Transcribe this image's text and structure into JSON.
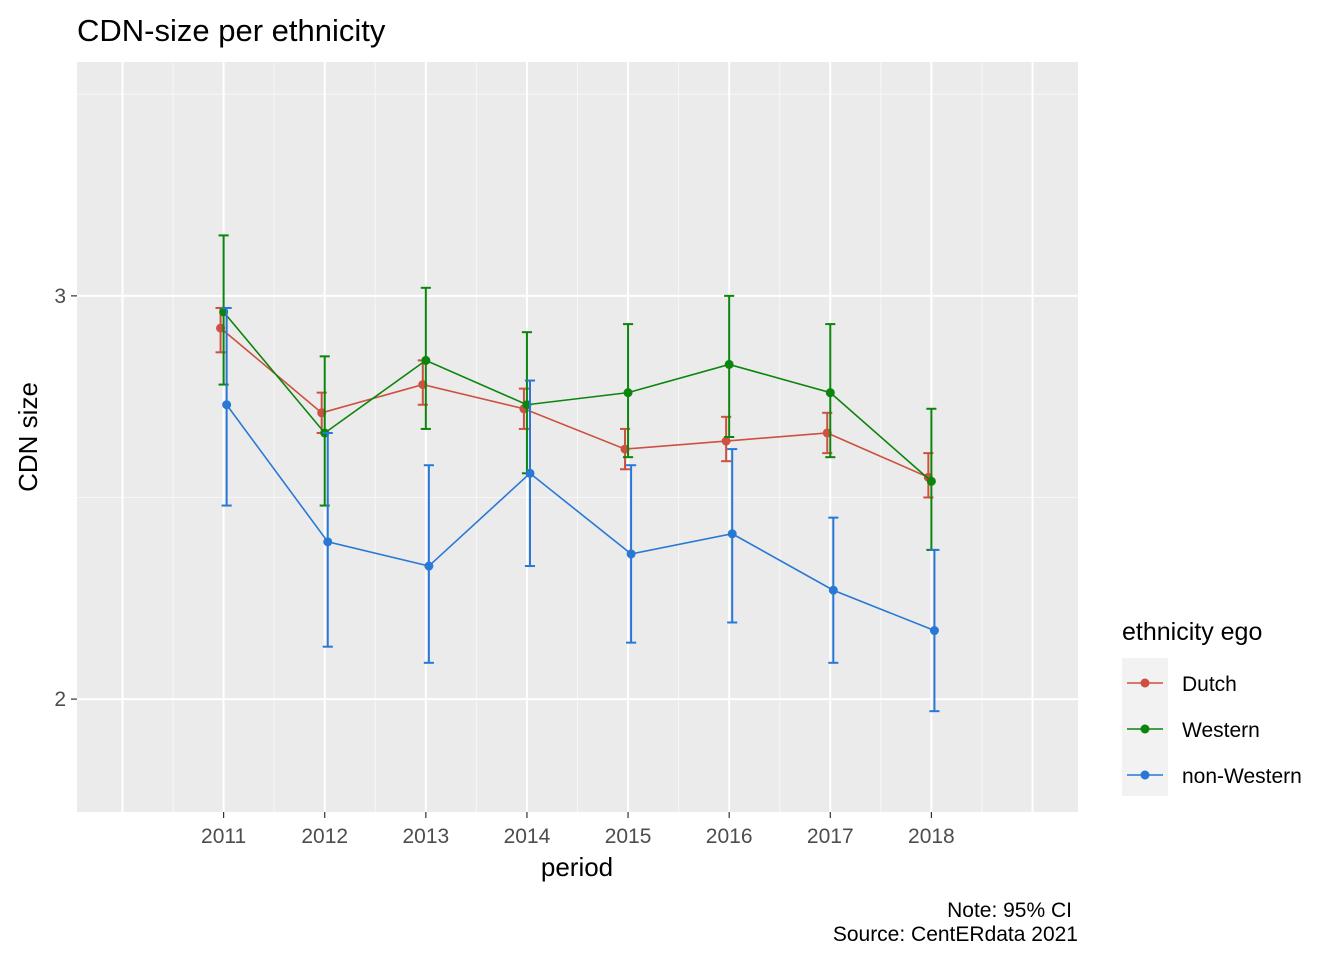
{
  "chart_data": {
    "type": "line",
    "title": "CDN-size per ethnicity",
    "xlabel": "period",
    "ylabel": "CDN size",
    "x": [
      2011,
      2012,
      2013,
      2014,
      2015,
      2016,
      2017,
      2018
    ],
    "x_ticks": [
      "2011",
      "2012",
      "2013",
      "2014",
      "2015",
      "2016",
      "2017",
      "2018"
    ],
    "xlim": [
      2009.55,
      2019.45
    ],
    "y_ticks": [
      "2",
      "3"
    ],
    "ylim": [
      1.72,
      3.58
    ],
    "grid": true,
    "legend": {
      "title": "ethnicity ego",
      "placement": "right",
      "entries": [
        "Dutch",
        "Western",
        "non-Western"
      ]
    },
    "series": [
      {
        "name": "Dutch",
        "color": "#cd5040",
        "values": [
          2.92,
          2.71,
          2.78,
          2.72,
          2.62,
          2.64,
          2.66,
          2.55
        ],
        "ci_low": [
          2.86,
          2.66,
          2.73,
          2.67,
          2.57,
          2.59,
          2.61,
          2.5
        ],
        "ci_high": [
          2.97,
          2.76,
          2.84,
          2.77,
          2.67,
          2.7,
          2.71,
          2.61
        ]
      },
      {
        "name": "Western",
        "color": "#0b850b",
        "values": [
          2.96,
          2.66,
          2.84,
          2.73,
          2.76,
          2.83,
          2.76,
          2.54
        ],
        "ci_low": [
          2.78,
          2.48,
          2.67,
          2.56,
          2.6,
          2.65,
          2.6,
          2.37
        ],
        "ci_high": [
          3.15,
          2.85,
          3.02,
          2.91,
          2.93,
          3.0,
          2.93,
          2.72
        ]
      },
      {
        "name": "non-Western",
        "color": "#2878d6",
        "values": [
          2.73,
          2.39,
          2.33,
          2.56,
          2.36,
          2.41,
          2.27,
          2.17
        ],
        "ci_low": [
          2.48,
          2.13,
          2.09,
          2.33,
          2.14,
          2.19,
          2.09,
          1.97
        ],
        "ci_high": [
          2.97,
          2.66,
          2.58,
          2.79,
          2.58,
          2.62,
          2.45,
          2.37
        ]
      }
    ],
    "caption": [
      "Note: 95% CI",
      "Source: CentERdata 2021"
    ]
  }
}
